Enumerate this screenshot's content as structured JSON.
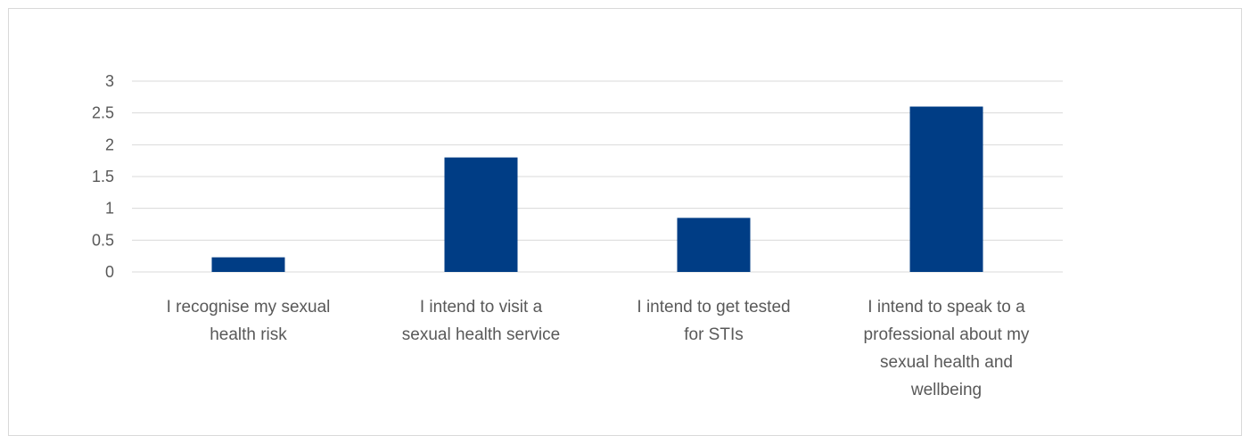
{
  "chart_data": {
    "type": "bar",
    "title": "",
    "xlabel": "",
    "ylabel": "",
    "categories": [
      "I recognise my sexual health risk",
      "I intend to visit a sexual health service",
      "I intend to get tested for STIs",
      "I intend to speak to a professional about my sexual health and wellbeing"
    ],
    "category_lines": [
      [
        "I recognise my sexual",
        "health risk"
      ],
      [
        "I intend to visit a",
        "sexual health service"
      ],
      [
        "I intend to get tested",
        "for STIs"
      ],
      [
        "I intend to speak to a",
        "professional about my",
        "sexual health and",
        "wellbeing"
      ]
    ],
    "values": [
      0.23,
      1.8,
      0.85,
      2.6
    ],
    "ylim": [
      0,
      3
    ],
    "yticks": [
      "0",
      "0.5",
      "1",
      "1.5",
      "2",
      "2.5",
      "3"
    ],
    "grid": true,
    "legend": "none",
    "colors": {
      "bar": "#003D85",
      "grid": "#d9d9d9",
      "text": "#595959",
      "border": "#d9d9d9"
    }
  }
}
